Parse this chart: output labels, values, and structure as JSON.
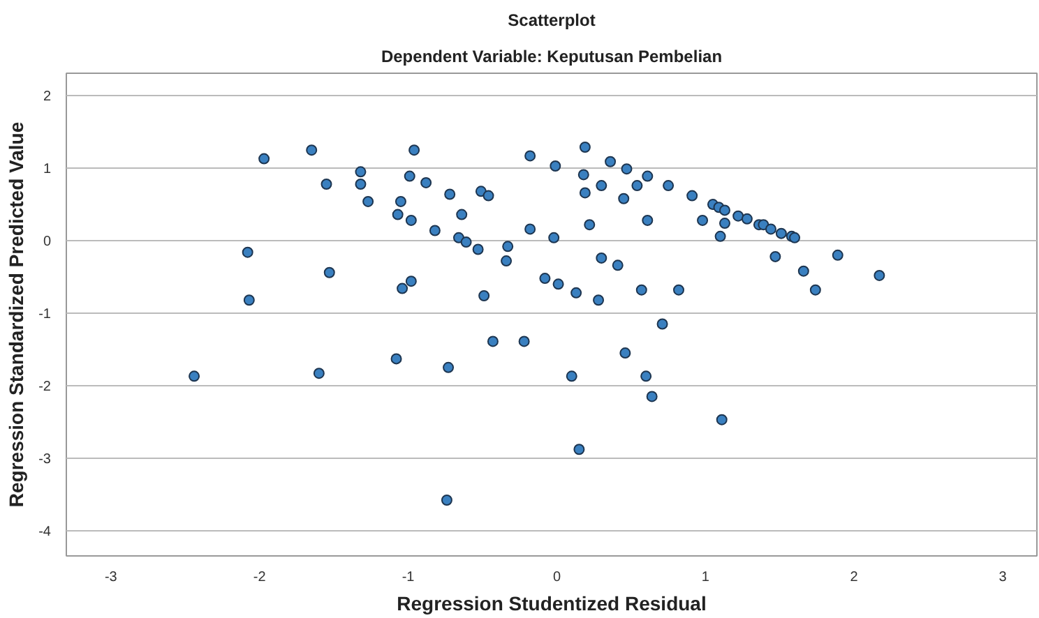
{
  "chart_data": {
    "type": "scatter",
    "title": "Scatterplot",
    "subtitle": "Dependent Variable: Keputusan Pembelian",
    "xlabel": "Regression Studentized Residual",
    "ylabel": "Regression Standardized Predicted Value",
    "xlim": [
      -3.3,
      3.23
    ],
    "ylim": [
      -4.35,
      2.31
    ],
    "xticks": [
      -3,
      -2,
      -1,
      0,
      1,
      2,
      3
    ],
    "yticks": [
      -4,
      -3,
      -2,
      -1,
      0,
      1,
      2
    ],
    "grid": "y",
    "marker": "circle",
    "series": [
      {
        "color": "#3a80c0",
        "x": [
          -2.44,
          -2.08,
          -2.07,
          -1.97,
          -1.65,
          -1.55,
          -1.53,
          -1.6,
          -1.32,
          -1.32,
          -1.27,
          -0.96,
          -0.99,
          -1.05,
          -1.07,
          -0.98,
          -1.04,
          -0.98,
          -0.88,
          -0.82,
          -0.72,
          -0.66,
          -0.61,
          -0.53,
          -0.64,
          -0.51,
          -0.46,
          -0.49,
          -0.43,
          -0.73,
          -0.74,
          -1.08,
          -0.33,
          -0.34,
          -0.22,
          -0.18,
          -0.18,
          -0.08,
          -0.01,
          -0.02,
          0.01,
          0.13,
          0.19,
          0.18,
          0.19,
          0.22,
          0.1,
          0.15,
          0.3,
          0.36,
          0.28,
          0.3,
          0.41,
          0.45,
          0.47,
          0.54,
          0.61,
          0.61,
          0.57,
          0.46,
          0.6,
          0.64,
          0.71,
          0.75,
          0.82,
          0.91,
          0.98,
          1.05,
          1.09,
          1.13,
          1.13,
          1.1,
          1.11,
          1.22,
          1.28,
          1.36,
          1.39,
          1.44,
          1.47,
          1.51,
          1.58,
          1.6,
          1.66,
          1.74,
          1.89,
          2.17
        ],
        "values": [
          -1.87,
          -0.16,
          -0.82,
          1.13,
          1.25,
          0.78,
          -0.44,
          -1.83,
          0.95,
          0.78,
          0.54,
          1.25,
          0.89,
          0.54,
          0.36,
          0.28,
          -0.66,
          -0.56,
          0.8,
          0.14,
          0.64,
          0.04,
          -0.02,
          -0.12,
          0.36,
          0.68,
          0.62,
          -0.76,
          -1.39,
          -1.75,
          -3.58,
          -1.63,
          -0.08,
          -0.28,
          -1.39,
          1.17,
          0.16,
          -0.52,
          1.03,
          0.04,
          -0.6,
          -0.72,
          1.29,
          0.91,
          0.66,
          0.22,
          -1.87,
          -2.88,
          0.76,
          1.09,
          -0.82,
          -0.24,
          -0.34,
          0.58,
          0.99,
          0.76,
          0.89,
          0.28,
          -0.68,
          -1.55,
          -1.87,
          -2.15,
          -1.15,
          0.76,
          -0.68,
          0.62,
          0.28,
          0.5,
          0.46,
          0.42,
          0.24,
          0.06,
          -2.47,
          0.34,
          0.3,
          0.22,
          0.22,
          0.16,
          -0.22,
          0.1,
          0.06,
          0.04,
          -0.42,
          -0.68,
          -0.2,
          -0.48
        ]
      }
    ]
  }
}
